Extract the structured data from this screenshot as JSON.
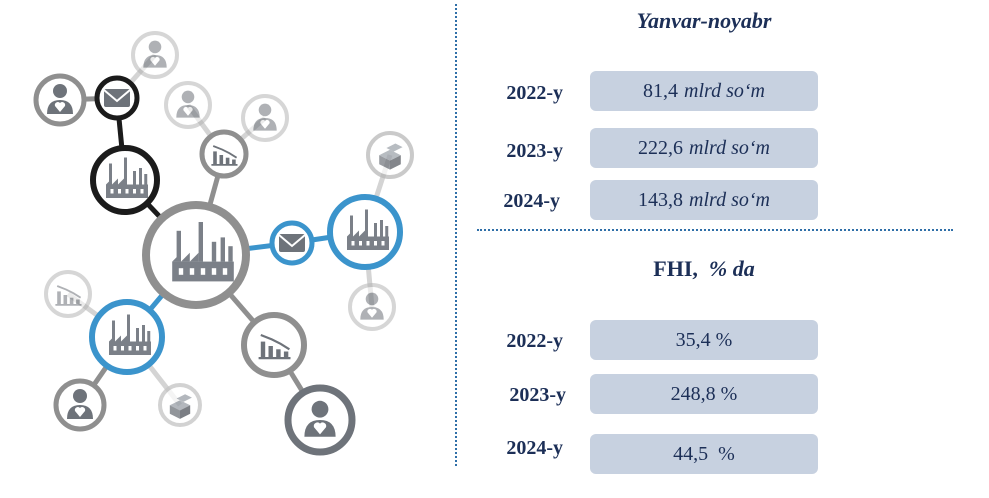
{
  "summary": {
    "top": {
      "heading": "Yanvar-noyabr",
      "rows": [
        {
          "year": "2022-y",
          "value": "81,4",
          "unit": "mlrd so‘m"
        },
        {
          "year": "2023-y",
          "value": "222,6",
          "unit": "mlrd so‘m"
        },
        {
          "year": "2024-y",
          "value": "143,8",
          "unit": "mlrd so‘m"
        }
      ]
    },
    "bottom": {
      "heading_main": "FHI,",
      "heading_unit": "% da",
      "rows": [
        {
          "year": "2022-y",
          "value": "35,4 %"
        },
        {
          "year": "2023-y",
          "value": "248,8 %"
        },
        {
          "year": "2024-y",
          "value": "44,5  %"
        }
      ]
    }
  },
  "colors": {
    "text": "#1c2f57",
    "box": "#c7d1e0",
    "divider": "#2f6fa8",
    "node_blue": "#3b94cc",
    "node_black": "#1b1b1b",
    "node_gray": "#8f8f8f",
    "node_light": "#d4d4d4"
  },
  "illustration": {
    "icons": [
      "factory-icon",
      "envelope-icon",
      "person-heart-icon",
      "chart-down-icon",
      "boxes-icon"
    ]
  }
}
